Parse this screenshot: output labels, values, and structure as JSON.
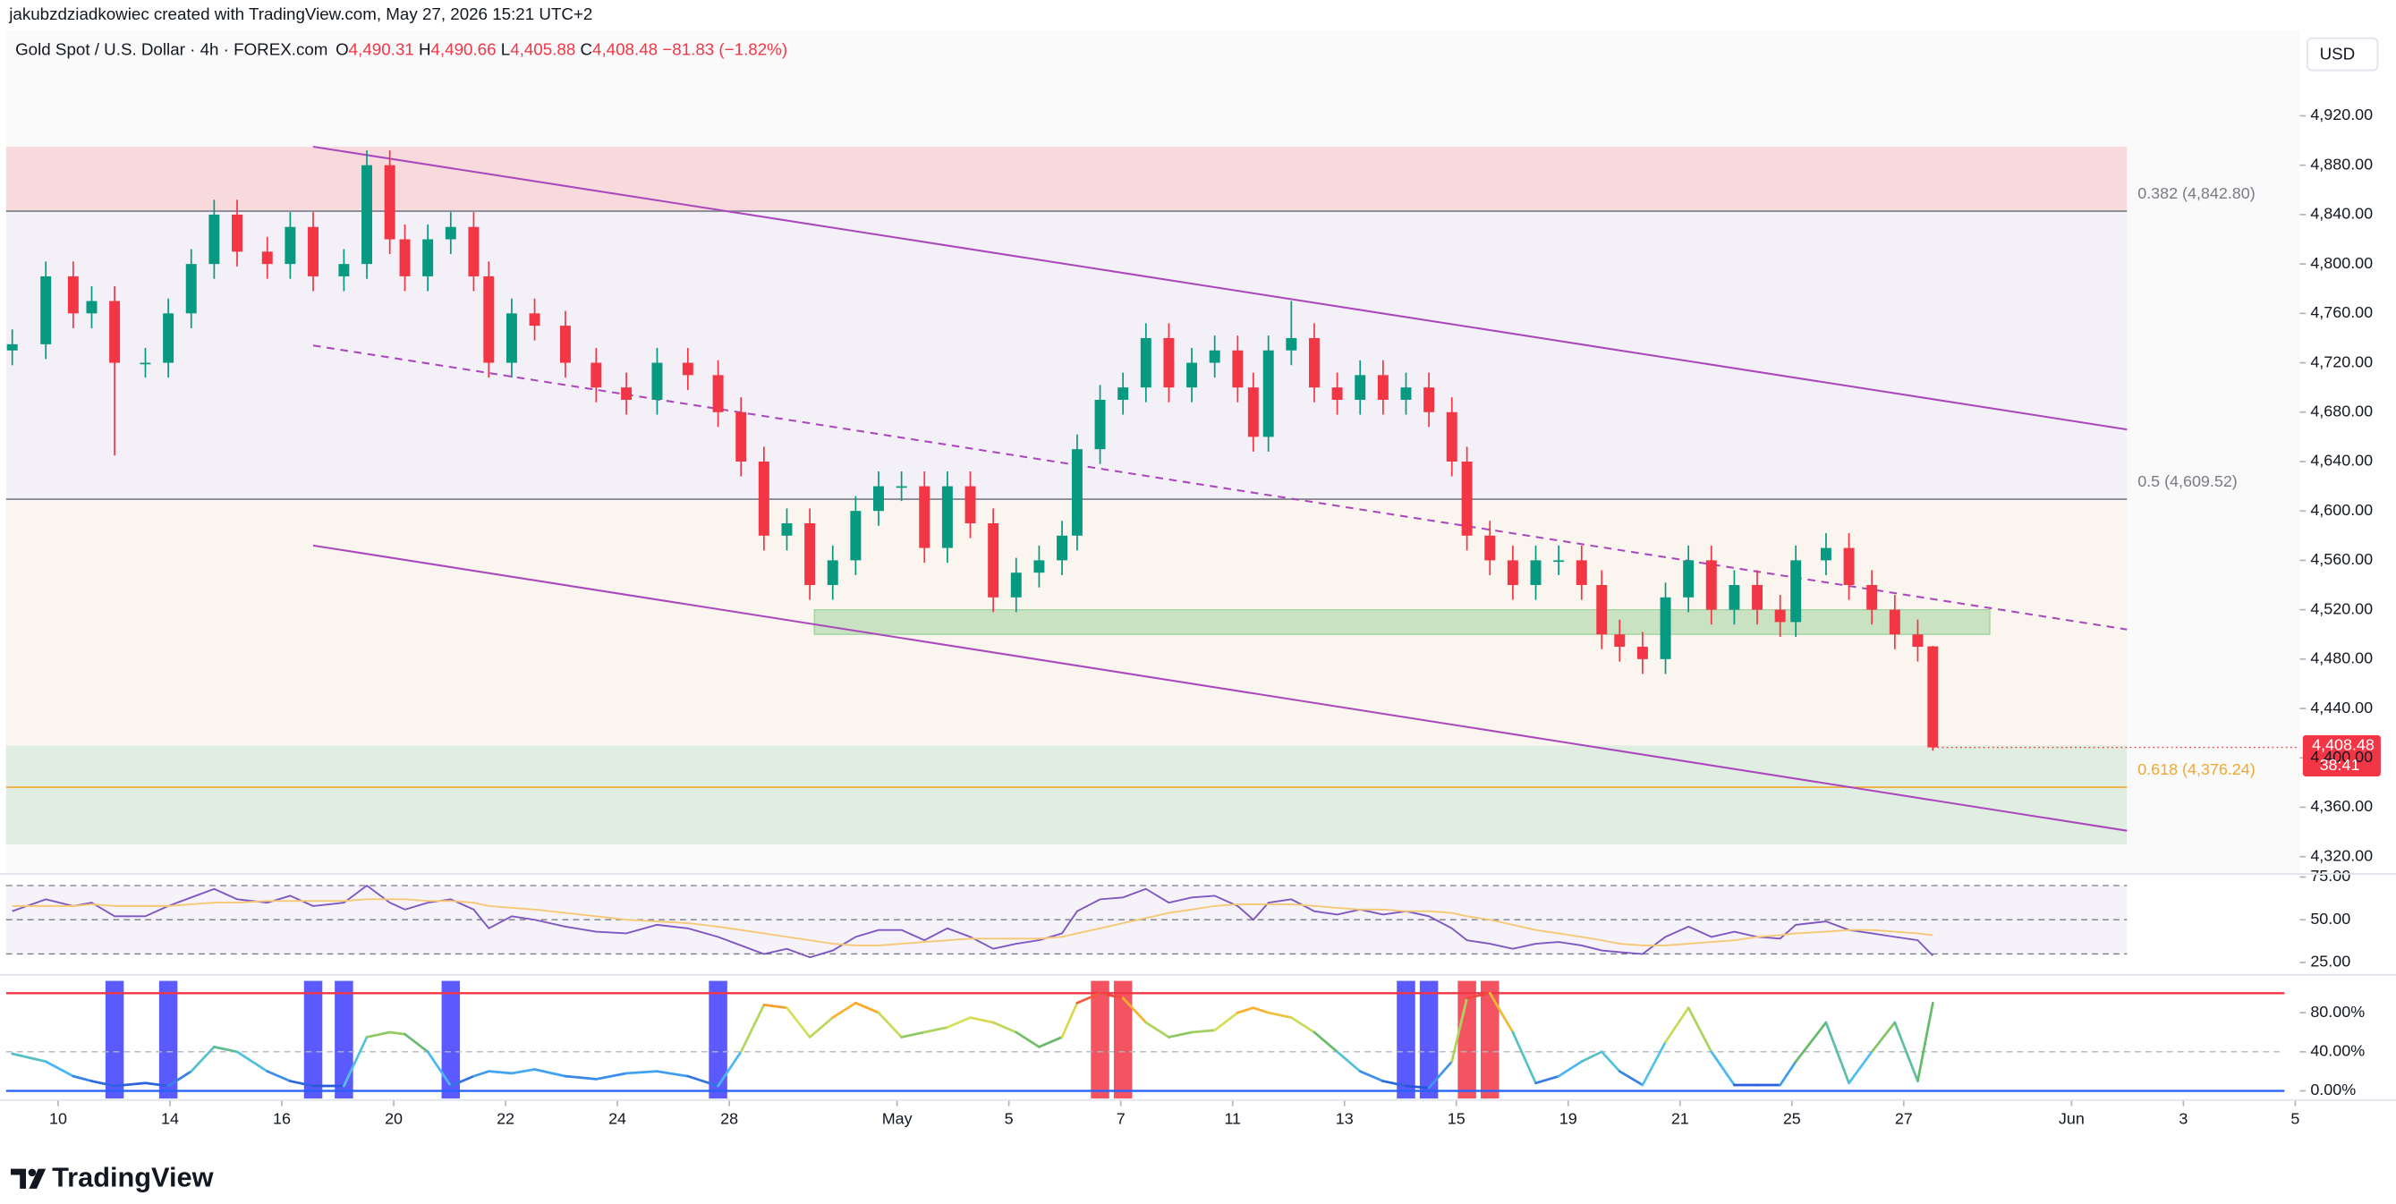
{
  "header": {
    "credit": "jakubzdziadkowiec created with TradingView.com, May 27, 2026 15:21 UTC+2",
    "symbol": "Gold Spot / U.S. Dollar · 4h · FOREX.com",
    "ohlc": [
      {
        "key": "O",
        "value": "4,490.31"
      },
      {
        "key": "H",
        "value": "4,490.66"
      },
      {
        "key": "L",
        "value": "4,405.88"
      },
      {
        "key": "C",
        "value": "4,408.48"
      }
    ],
    "change": "−81.83 (−1.82%)"
  },
  "currency": "USD",
  "brand": "TradingView",
  "chart_data": [
    {
      "type": "candlestick",
      "x": [
        -0.82,
        -0.22,
        0.27,
        0.6,
        1.01,
        1.56,
        1.97,
        2.38,
        2.79,
        3.2,
        3.74,
        4.15,
        4.56,
        5.11,
        5.52,
        5.93,
        6.2,
        6.61,
        7.02,
        7.43,
        7.7,
        8.11,
        8.52,
        9.07,
        9.62,
        10.16,
        10.71,
        11.26,
        11.8,
        12.21,
        12.62,
        13.03,
        13.44,
        13.85,
        14.26,
        14.67,
        15.08,
        15.49,
        15.9,
        16.31,
        16.72,
        17.13,
        17.54,
        17.95,
        18.22,
        18.63,
        19.04,
        19.45,
        19.86,
        20.27,
        20.68,
        21.09,
        21.37,
        21.64,
        22.05,
        22.46,
        22.87,
        23.28,
        23.69,
        24.1,
        24.51,
        24.92,
        25.19,
        25.6,
        26.01,
        26.42,
        26.83,
        27.24,
        27.6,
        27.92,
        28.33,
        28.74,
        29.15,
        29.56,
        29.97,
        30.38,
        30.79,
        31.07,
        31.61,
        32.02,
        32.43,
        32.84,
        33.25,
        33.52
      ],
      "open": [
        4730,
        4735,
        4790,
        4760,
        4770,
        4720,
        4720,
        4760,
        4800,
        4840,
        4810,
        4800,
        4830,
        4790,
        4800,
        4880,
        4820,
        4790,
        4820,
        4830,
        4790,
        4720,
        4760,
        4750,
        4720,
        4700,
        4690,
        4720,
        4710,
        4680,
        4640,
        4580,
        4590,
        4540,
        4560,
        4600,
        4620,
        4620,
        4570,
        4620,
        4590,
        4530,
        4550,
        4560,
        4580,
        4650,
        4690,
        4700,
        4740,
        4700,
        4720,
        4730,
        4700,
        4660,
        4730,
        4740,
        4700,
        4690,
        4710,
        4690,
        4700,
        4680,
        4640,
        4580,
        4560,
        4540,
        4560,
        4560,
        4540,
        4500,
        4490,
        4480,
        4530,
        4560,
        4520,
        4540,
        4520,
        4510,
        4560,
        4570,
        4540,
        4520,
        4500,
        4490.31
      ],
      "high": [
        4747,
        4802,
        4802,
        4782,
        4782,
        4732,
        4772,
        4812,
        4852,
        4852,
        4822,
        4842,
        4842,
        4812,
        4892,
        4892,
        4832,
        4832,
        4842,
        4842,
        4802,
        4772,
        4772,
        4762,
        4732,
        4712,
        4732,
        4732,
        4722,
        4692,
        4652,
        4602,
        4602,
        4572,
        4612,
        4632,
        4632,
        4632,
        4632,
        4632,
        4602,
        4562,
        4572,
        4592,
        4662,
        4702,
        4712,
        4752,
        4752,
        4732,
        4742,
        4742,
        4712,
        4742,
        4770,
        4752,
        4712,
        4722,
        4722,
        4712,
        4712,
        4692,
        4652,
        4592,
        4572,
        4572,
        4572,
        4572,
        4552,
        4512,
        4502,
        4542,
        4572,
        4572,
        4552,
        4552,
        4532,
        4572,
        4582,
        4582,
        4552,
        4532,
        4512,
        4490.66
      ],
      "low": [
        4718,
        4723,
        4748,
        4748,
        4645,
        4708,
        4708,
        4748,
        4788,
        4798,
        4788,
        4788,
        4778,
        4778,
        4788,
        4808,
        4778,
        4778,
        4808,
        4778,
        4708,
        4708,
        4738,
        4708,
        4688,
        4678,
        4678,
        4698,
        4668,
        4628,
        4568,
        4568,
        4528,
        4528,
        4548,
        4588,
        4608,
        4558,
        4558,
        4578,
        4518,
        4518,
        4538,
        4548,
        4568,
        4638,
        4678,
        4688,
        4688,
        4688,
        4708,
        4688,
        4648,
        4648,
        4718,
        4688,
        4678,
        4678,
        4678,
        4678,
        4668,
        4628,
        4568,
        4548,
        4528,
        4528,
        4548,
        4528,
        4488,
        4478,
        4468,
        4468,
        4518,
        4508,
        4508,
        4508,
        4498,
        4498,
        4548,
        4528,
        4508,
        4488,
        4478,
        4405.88
      ],
      "close": [
        4735,
        4790,
        4760,
        4770,
        4720,
        4720,
        4760,
        4800,
        4840,
        4810,
        4800,
        4830,
        4790,
        4800,
        4880,
        4820,
        4790,
        4820,
        4830,
        4790,
        4720,
        4760,
        4750,
        4720,
        4700,
        4690,
        4720,
        4710,
        4680,
        4640,
        4580,
        4590,
        4540,
        4560,
        4600,
        4620,
        4620,
        4570,
        4620,
        4590,
        4530,
        4550,
        4560,
        4580,
        4650,
        4690,
        4700,
        4740,
        4700,
        4720,
        4730,
        4700,
        4660,
        4730,
        4740,
        4700,
        4690,
        4710,
        4690,
        4700,
        4680,
        4640,
        4580,
        4560,
        4540,
        4560,
        4560,
        4540,
        4500,
        4490,
        4480,
        4530,
        4560,
        4520,
        4540,
        4520,
        4510,
        4560,
        4570,
        4540,
        4520,
        4500,
        4490,
        4408.48
      ],
      "up_color": "#089981",
      "down_color": "#f23645",
      "xlim": [
        -0.93,
        40.08
      ],
      "xticks": [
        {
          "value": 0,
          "label": "10"
        },
        {
          "value": 2,
          "label": "14"
        },
        {
          "value": 4,
          "label": "16"
        },
        {
          "value": 6,
          "label": "20"
        },
        {
          "value": 8,
          "label": "22"
        },
        {
          "value": 10,
          "label": "24"
        },
        {
          "value": 12,
          "label": "28"
        },
        {
          "value": 15,
          "label": "May"
        },
        {
          "value": 17,
          "label": "5"
        },
        {
          "value": 19,
          "label": "7"
        },
        {
          "value": 21,
          "label": "11"
        },
        {
          "value": 23,
          "label": "13"
        },
        {
          "value": 25,
          "label": "15"
        },
        {
          "value": 27,
          "label": "19"
        },
        {
          "value": 29,
          "label": "21"
        },
        {
          "value": 31,
          "label": "25"
        },
        {
          "value": 33,
          "label": "27"
        },
        {
          "value": 36,
          "label": "Jun"
        },
        {
          "value": 38,
          "label": "3"
        },
        {
          "value": 40,
          "label": "5"
        }
      ],
      "ylim": [
        4306,
        4989
      ],
      "yticks": [
        {
          "value": 4920,
          "label": "4,920.00"
        },
        {
          "value": 4880,
          "label": "4,880.00"
        },
        {
          "value": 4840,
          "label": "4,840.00"
        },
        {
          "value": 4800,
          "label": "4,800.00"
        },
        {
          "value": 4760,
          "label": "4,760.00"
        },
        {
          "value": 4720,
          "label": "4,720.00"
        },
        {
          "value": 4680,
          "label": "4,680.00"
        },
        {
          "value": 4640,
          "label": "4,640.00"
        },
        {
          "value": 4600,
          "label": "4,600.00"
        },
        {
          "value": 4560,
          "label": "4,560.00"
        },
        {
          "value": 4520,
          "label": "4,520.00"
        },
        {
          "value": 4480,
          "label": "4,480.00"
        },
        {
          "value": 4440,
          "label": "4,440.00"
        },
        {
          "value": 4400,
          "label": "4,400.00"
        },
        {
          "value": 4360,
          "label": "4,360.00"
        },
        {
          "value": 4320,
          "label": "4,320.00"
        }
      ],
      "last_price": {
        "value": 4408.48,
        "label": "4,408.48"
      },
      "countdown": "38:41",
      "zone_x_end": 36.99,
      "zones": [
        {
          "from": 4895,
          "to": 4842.8,
          "color": "rgba(242,54,69,0.16)"
        },
        {
          "from": 4842.8,
          "to": 4609.52,
          "color": "rgba(149,117,205,0.07)"
        },
        {
          "from": 4609.52,
          "to": 4410,
          "color": "rgba(255,183,77,0.07)"
        },
        {
          "from": 4410,
          "to": 4330,
          "color": "rgba(76,175,80,0.15)"
        }
      ],
      "fib_levels": [
        {
          "label": "0.382 (4,842.80)",
          "value": 4842.8,
          "color": "#787b86"
        },
        {
          "label": "0.5 (4,609.52)",
          "value": 4609.52,
          "color": "#787b86"
        },
        {
          "label": "0.618 (4,376.24)",
          "value": 4376.24,
          "color": "#f0a830"
        }
      ],
      "channel": [
        {
          "x": [
            4.56,
            36.99
          ],
          "y": [
            4895,
            4666
          ],
          "color": "#ab47bc",
          "dashed": false
        },
        {
          "x": [
            4.56,
            36.99
          ],
          "y": [
            4734,
            4504
          ],
          "color": "#ab47bc",
          "dashed": true
        },
        {
          "x": [
            4.56,
            36.99
          ],
          "y": [
            4572,
            4341
          ],
          "color": "#ab47bc",
          "dashed": false
        }
      ],
      "support_zone": {
        "x": [
          13.52,
          34.54
        ],
        "y": [
          4500,
          4520
        ],
        "color": "rgba(76,175,80,0.28)"
      }
    },
    {
      "type": "line",
      "series": [
        {
          "color": "#7e57c2",
          "values": [
            55,
            62,
            58,
            60,
            52,
            52,
            58,
            63,
            68,
            62,
            60,
            64,
            58,
            60,
            70,
            60,
            56,
            60,
            62,
            56,
            45,
            52,
            50,
            46,
            43,
            42,
            47,
            45,
            40,
            35,
            30,
            33,
            28,
            32,
            40,
            44,
            44,
            38,
            45,
            40,
            33,
            36,
            38,
            42,
            55,
            62,
            63,
            68,
            60,
            63,
            64,
            58,
            50,
            60,
            62,
            55,
            53,
            56,
            53,
            55,
            52,
            45,
            38,
            36,
            33,
            36,
            37,
            35,
            32,
            31,
            30,
            40,
            46,
            40,
            43,
            40,
            39,
            47,
            49,
            44,
            42,
            40,
            38,
            29
          ]
        },
        {
          "color": "#f7c873",
          "values": [
            58,
            58,
            58,
            59,
            58,
            58,
            58,
            59,
            60,
            60,
            61,
            61,
            61,
            61,
            62,
            62,
            62,
            61,
            61,
            60,
            58,
            57,
            56,
            54,
            52,
            50,
            49,
            48,
            46,
            44,
            42,
            40,
            38,
            36,
            35,
            35,
            36,
            37,
            38,
            39,
            39,
            39,
            39,
            40,
            42,
            45,
            48,
            51,
            54,
            56,
            58,
            59,
            59,
            59,
            59,
            58,
            57,
            56,
            56,
            55,
            55,
            54,
            52,
            50,
            47,
            44,
            42,
            40,
            38,
            36,
            35,
            35,
            36,
            37,
            38,
            40,
            41,
            42,
            43,
            44,
            44,
            43,
            42,
            41
          ]
        }
      ],
      "ylim": [
        19.6,
        76.8
      ],
      "yticks": [
        {
          "value": 75,
          "label": "75.00"
        },
        {
          "value": 50,
          "label": "50.00"
        },
        {
          "value": 25,
          "label": "25.00"
        }
      ],
      "band": [
        30,
        70
      ],
      "band_color": "rgba(126,87,194,0.08)",
      "levels": [
        70,
        50,
        30
      ]
    },
    {
      "type": "gradient-line",
      "values": [
        38,
        30,
        15,
        10,
        5,
        8,
        5,
        20,
        45,
        40,
        20,
        10,
        5,
        5,
        55,
        60,
        58,
        40,
        5,
        15,
        20,
        18,
        22,
        15,
        12,
        18,
        20,
        15,
        5,
        40,
        88,
        85,
        55,
        75,
        90,
        80,
        55,
        60,
        65,
        75,
        70,
        60,
        45,
        55,
        90,
        100,
        95,
        70,
        55,
        60,
        62,
        80,
        85,
        80,
        75,
        60,
        40,
        20,
        10,
        5,
        3,
        30,
        95,
        100,
        60,
        8,
        15,
        30,
        40,
        20,
        6,
        50,
        85,
        40,
        6,
        6,
        6,
        30,
        70,
        8,
        40,
        70,
        10,
        90
      ],
      "color_stops": [
        [
          0,
          "#1e3fd6"
        ],
        [
          25,
          "#4fc3f7"
        ],
        [
          50,
          "#66bb6a"
        ],
        [
          70,
          "#d4e157"
        ],
        [
          85,
          "#ffa726"
        ],
        [
          100,
          "#f23645"
        ]
      ],
      "signal_low": 5,
      "signal_high": 95,
      "signal_low_color": "#3d3dff",
      "signal_high_color": "#f23645",
      "levels": [
        {
          "value": 100,
          "color": "#f23645",
          "dashed": false
        },
        {
          "value": 40,
          "color": "#b2b5be",
          "dashed": true
        },
        {
          "value": 0,
          "color": "#2962ff",
          "dashed": false
        }
      ],
      "ylim": [
        -9.4,
        115.7
      ],
      "yticks": [
        {
          "value": 80,
          "label": "80.00%"
        },
        {
          "value": 40,
          "label": "40.00%"
        },
        {
          "value": 0,
          "label": "0.00%"
        }
      ]
    }
  ]
}
